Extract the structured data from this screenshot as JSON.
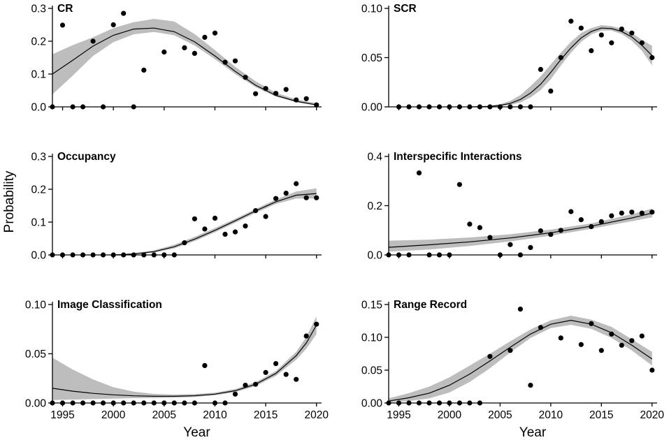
{
  "figure": {
    "ylabel": "Probability",
    "xlabel": "Year"
  },
  "chart_data": [
    {
      "type": "scatter",
      "title": "CR",
      "xlabel": "",
      "ylabel": "Probability",
      "xlim": [
        1994,
        2020.5
      ],
      "ylim": [
        0,
        0.3
      ],
      "yticks": [
        0,
        0.1,
        0.2,
        0.3
      ],
      "ytick_labels": [
        "0.0",
        "0.1",
        "0.2",
        "0.3"
      ],
      "xticks": [
        1995,
        2000,
        2005,
        2010,
        2015,
        2020
      ],
      "xtick_labels": [],
      "points": {
        "x": [
          1994,
          1995,
          1996,
          1997,
          1998,
          1999,
          2000,
          2001,
          2002,
          2003,
          2005,
          2007,
          2008,
          2009,
          2010,
          2011,
          2012,
          2013,
          2014,
          2015,
          2016,
          2017,
          2018,
          2019,
          2020
        ],
        "y": [
          0,
          0.249,
          0,
          0,
          0.2,
          0,
          0.25,
          0.285,
          0,
          0.112,
          0.167,
          0.18,
          0.163,
          0.212,
          0.225,
          0.136,
          0.14,
          0.09,
          0.04,
          0.056,
          0.041,
          0.053,
          0.021,
          0.025,
          0.006
        ]
      },
      "fit": {
        "x": [
          1994,
          1996,
          1998,
          2000,
          2002,
          2004,
          2006,
          2008,
          2010,
          2012,
          2014,
          2016,
          2018,
          2020
        ],
        "y": [
          0.1,
          0.142,
          0.185,
          0.218,
          0.237,
          0.24,
          0.229,
          0.198,
          0.155,
          0.108,
          0.066,
          0.035,
          0.017,
          0.006
        ],
        "lower": [
          0.038,
          0.095,
          0.155,
          0.197,
          0.221,
          0.228,
          0.218,
          0.187,
          0.145,
          0.1,
          0.06,
          0.031,
          0.014,
          0.004
        ],
        "upper": [
          0.16,
          0.188,
          0.212,
          0.24,
          0.258,
          0.268,
          0.26,
          0.222,
          0.173,
          0.122,
          0.078,
          0.043,
          0.023,
          0.011
        ]
      }
    },
    {
      "type": "scatter",
      "title": "SCR",
      "xlabel": "",
      "ylabel": "Probability",
      "xlim": [
        1994,
        2020.5
      ],
      "ylim": [
        0,
        0.1
      ],
      "yticks": [
        0,
        0.05,
        0.1
      ],
      "ytick_labels": [
        "0.00",
        "0.05",
        "0.10"
      ],
      "xticks": [
        1995,
        2000,
        2005,
        2010,
        2015,
        2020
      ],
      "xtick_labels": [],
      "points": {
        "x": [
          1995,
          1996,
          1997,
          1998,
          1999,
          2000,
          2001,
          2002,
          2003,
          2004,
          2005,
          2006,
          2007,
          2008,
          2009,
          2010,
          2011,
          2012,
          2013,
          2014,
          2015,
          2016,
          2017,
          2018,
          2019,
          2020
        ],
        "y": [
          0,
          0,
          0,
          0,
          0,
          0,
          0,
          0,
          0,
          0,
          0,
          0,
          0,
          0,
          0.038,
          0.016,
          0.05,
          0.087,
          0.08,
          0.057,
          0.073,
          0.065,
          0.079,
          0.075,
          0.065,
          0.05
        ]
      },
      "fit": {
        "x": [
          2002,
          2004,
          2005,
          2006,
          2007,
          2008,
          2009,
          2010,
          2011,
          2012,
          2013,
          2014,
          2015,
          2016,
          2017,
          2018,
          2019,
          2020
        ],
        "y": [
          0,
          0.0005,
          0.0015,
          0.0035,
          0.0075,
          0.014,
          0.023,
          0.035,
          0.048,
          0.06,
          0.07,
          0.0765,
          0.08,
          0.0795,
          0.0765,
          0.071,
          0.0625,
          0.052
        ],
        "lower": [
          0,
          0.0002,
          0.0008,
          0.002,
          0.0045,
          0.0095,
          0.017,
          0.028,
          0.042,
          0.055,
          0.066,
          0.0735,
          0.0775,
          0.0775,
          0.074,
          0.067,
          0.057,
          0.042
        ],
        "upper": [
          0,
          0.0012,
          0.0028,
          0.006,
          0.012,
          0.021,
          0.031,
          0.043,
          0.055,
          0.066,
          0.075,
          0.08,
          0.083,
          0.082,
          0.0795,
          0.075,
          0.068,
          0.062
        ]
      }
    },
    {
      "type": "scatter",
      "title": "Occupancy",
      "xlabel": "",
      "ylabel": "Probability",
      "xlim": [
        1994,
        2020.5
      ],
      "ylim": [
        0,
        0.3
      ],
      "yticks": [
        0,
        0.1,
        0.2,
        0.3
      ],
      "ytick_labels": [
        "0.0",
        "0.1",
        "0.2",
        "0.3"
      ],
      "xticks": [
        1995,
        2000,
        2005,
        2010,
        2015,
        2020
      ],
      "xtick_labels": [],
      "points": {
        "x": [
          1994,
          1995,
          1996,
          1997,
          1998,
          1999,
          2000,
          2001,
          2002,
          2003,
          2004,
          2005,
          2006,
          2007,
          2008,
          2009,
          2010,
          2011,
          2012,
          2013,
          2014,
          2015,
          2016,
          2017,
          2018,
          2019,
          2020
        ],
        "y": [
          0,
          0,
          0,
          0,
          0,
          0,
          0,
          0,
          0,
          0,
          0,
          0,
          0,
          0.037,
          0.11,
          0.079,
          0.112,
          0.063,
          0.07,
          0.088,
          0.135,
          0.117,
          0.172,
          0.188,
          0.217,
          0.174,
          0.174
        ]
      },
      "fit": {
        "x": [
          2000,
          2002,
          2004,
          2006,
          2008,
          2010,
          2012,
          2014,
          2016,
          2018,
          2020
        ],
        "y": [
          0,
          0.003,
          0.01,
          0.025,
          0.048,
          0.075,
          0.104,
          0.134,
          0.162,
          0.182,
          0.187
        ],
        "lower": [
          0,
          0.002,
          0.007,
          0.02,
          0.042,
          0.069,
          0.098,
          0.128,
          0.155,
          0.172,
          0.172
        ],
        "upper": [
          0,
          0.005,
          0.014,
          0.031,
          0.055,
          0.082,
          0.11,
          0.14,
          0.169,
          0.193,
          0.203
        ]
      }
    },
    {
      "type": "scatter",
      "title": "Interspecific Interactions",
      "xlabel": "",
      "ylabel": "Probability",
      "xlim": [
        1994,
        2020.5
      ],
      "ylim": [
        0,
        0.4
      ],
      "yticks": [
        0,
        0.2,
        0.4
      ],
      "ytick_labels": [
        "0.0",
        "0.2",
        "0.4"
      ],
      "xticks": [
        1995,
        2000,
        2005,
        2010,
        2015,
        2020
      ],
      "xtick_labels": [],
      "points": {
        "x": [
          1994,
          1995,
          1996,
          1997,
          1998,
          1999,
          2000,
          2001,
          2002,
          2003,
          2004,
          2005,
          2006,
          2007,
          2008,
          2009,
          2010,
          2011,
          2012,
          2013,
          2014,
          2015,
          2016,
          2017,
          2018,
          2019,
          2020
        ],
        "y": [
          0,
          0,
          0,
          0.333,
          0,
          0,
          0,
          0.286,
          0.125,
          0.111,
          0.071,
          0,
          0.042,
          0,
          0.03,
          0.098,
          0.083,
          0.1,
          0.176,
          0.143,
          0.115,
          0.135,
          0.159,
          0.17,
          0.174,
          0.17,
          0.174
        ]
      },
      "fit": {
        "x": [
          1994,
          1998,
          2002,
          2006,
          2010,
          2014,
          2018,
          2020
        ],
        "y": [
          0.031,
          0.041,
          0.053,
          0.069,
          0.09,
          0.117,
          0.15,
          0.17
        ],
        "lower": [
          0.013,
          0.022,
          0.036,
          0.055,
          0.078,
          0.106,
          0.137,
          0.153
        ],
        "upper": [
          0.058,
          0.062,
          0.071,
          0.084,
          0.103,
          0.128,
          0.165,
          0.188
        ]
      }
    },
    {
      "type": "scatter",
      "title": "Image Classification",
      "xlabel": "Year",
      "ylabel": "Probability",
      "xlim": [
        1994,
        2020.5
      ],
      "ylim": [
        0,
        0.1
      ],
      "yticks": [
        0,
        0.05,
        0.1
      ],
      "ytick_labels": [
        "0.00",
        "0.05",
        "0.10"
      ],
      "xticks": [
        1995,
        2000,
        2005,
        2010,
        2015,
        2020
      ],
      "xtick_labels": [
        "1995",
        "2000",
        "2005",
        "2010",
        "2015",
        "2020"
      ],
      "points": {
        "x": [
          1994,
          1995,
          1996,
          1997,
          1998,
          1999,
          2000,
          2001,
          2002,
          2003,
          2004,
          2005,
          2006,
          2007,
          2008,
          2009,
          2010,
          2011,
          2012,
          2013,
          2014,
          2015,
          2016,
          2017,
          2018,
          2019,
          2020
        ],
        "y": [
          0,
          0,
          0,
          0,
          0,
          0,
          0,
          0,
          0,
          0,
          0,
          0,
          0,
          0,
          0,
          0.038,
          0,
          0,
          0.009,
          0.018,
          0.019,
          0.031,
          0.04,
          0.029,
          0.024,
          0.068,
          0.08
        ]
      },
      "fit": {
        "x": [
          1994,
          1996,
          1998,
          2000,
          2002,
          2004,
          2006,
          2008,
          2010,
          2012,
          2014,
          2016,
          2018,
          2019,
          2020
        ],
        "y": [
          0.015,
          0.012,
          0.0098,
          0.0083,
          0.0073,
          0.0068,
          0.0068,
          0.0074,
          0.009,
          0.0125,
          0.019,
          0.03,
          0.048,
          0.061,
          0.079
        ],
        "lower": [
          0.003,
          0.0035,
          0.004,
          0.0045,
          0.005,
          0.0052,
          0.0054,
          0.0062,
          0.0078,
          0.011,
          0.0172,
          0.0275,
          0.044,
          0.055,
          0.07
        ],
        "upper": [
          0.046,
          0.034,
          0.024,
          0.016,
          0.0115,
          0.0092,
          0.0085,
          0.009,
          0.0104,
          0.0142,
          0.021,
          0.0325,
          0.052,
          0.067,
          0.088
        ]
      }
    },
    {
      "type": "scatter",
      "title": "Range Record",
      "xlabel": "Year",
      "ylabel": "Probability",
      "xlim": [
        1994,
        2020.5
      ],
      "ylim": [
        0,
        0.15
      ],
      "yticks": [
        0,
        0.05,
        0.1,
        0.15
      ],
      "ytick_labels": [
        "0.00",
        "0.05",
        "0.10",
        "0.15"
      ],
      "xticks": [
        1995,
        2000,
        2005,
        2010,
        2015,
        2020
      ],
      "xtick_labels": [
        "1995",
        "2000",
        "2005",
        "2010",
        "2015",
        "2020"
      ],
      "points": {
        "x": [
          1994,
          1995,
          1996,
          1997,
          1998,
          1999,
          2000,
          2001,
          2002,
          2003,
          2004,
          2006,
          2007,
          2008,
          2009,
          2011,
          2013,
          2014,
          2015,
          2016,
          2017,
          2018,
          2019,
          2020
        ],
        "y": [
          0,
          0,
          0,
          0,
          0,
          0,
          0,
          0,
          0,
          0,
          0.071,
          0.08,
          0.143,
          0.027,
          0.115,
          0.099,
          0.089,
          0.121,
          0.08,
          0.105,
          0.088,
          0.095,
          0.102,
          0.05
        ]
      },
      "fit": {
        "x": [
          1994,
          1996,
          1998,
          2000,
          2002,
          2004,
          2006,
          2008,
          2010,
          2012,
          2014,
          2016,
          2018,
          2020
        ],
        "y": [
          0.003,
          0.008,
          0.015,
          0.027,
          0.044,
          0.064,
          0.085,
          0.105,
          0.12,
          0.126,
          0.12,
          0.107,
          0.088,
          0.067
        ],
        "lower": [
          0.001,
          0.003,
          0.007,
          0.016,
          0.032,
          0.053,
          0.077,
          0.099,
          0.114,
          0.119,
          0.113,
          0.099,
          0.08,
          0.057
        ],
        "upper": [
          0.007,
          0.015,
          0.025,
          0.039,
          0.057,
          0.075,
          0.094,
          0.112,
          0.126,
          0.133,
          0.127,
          0.116,
          0.097,
          0.078
        ]
      }
    }
  ]
}
